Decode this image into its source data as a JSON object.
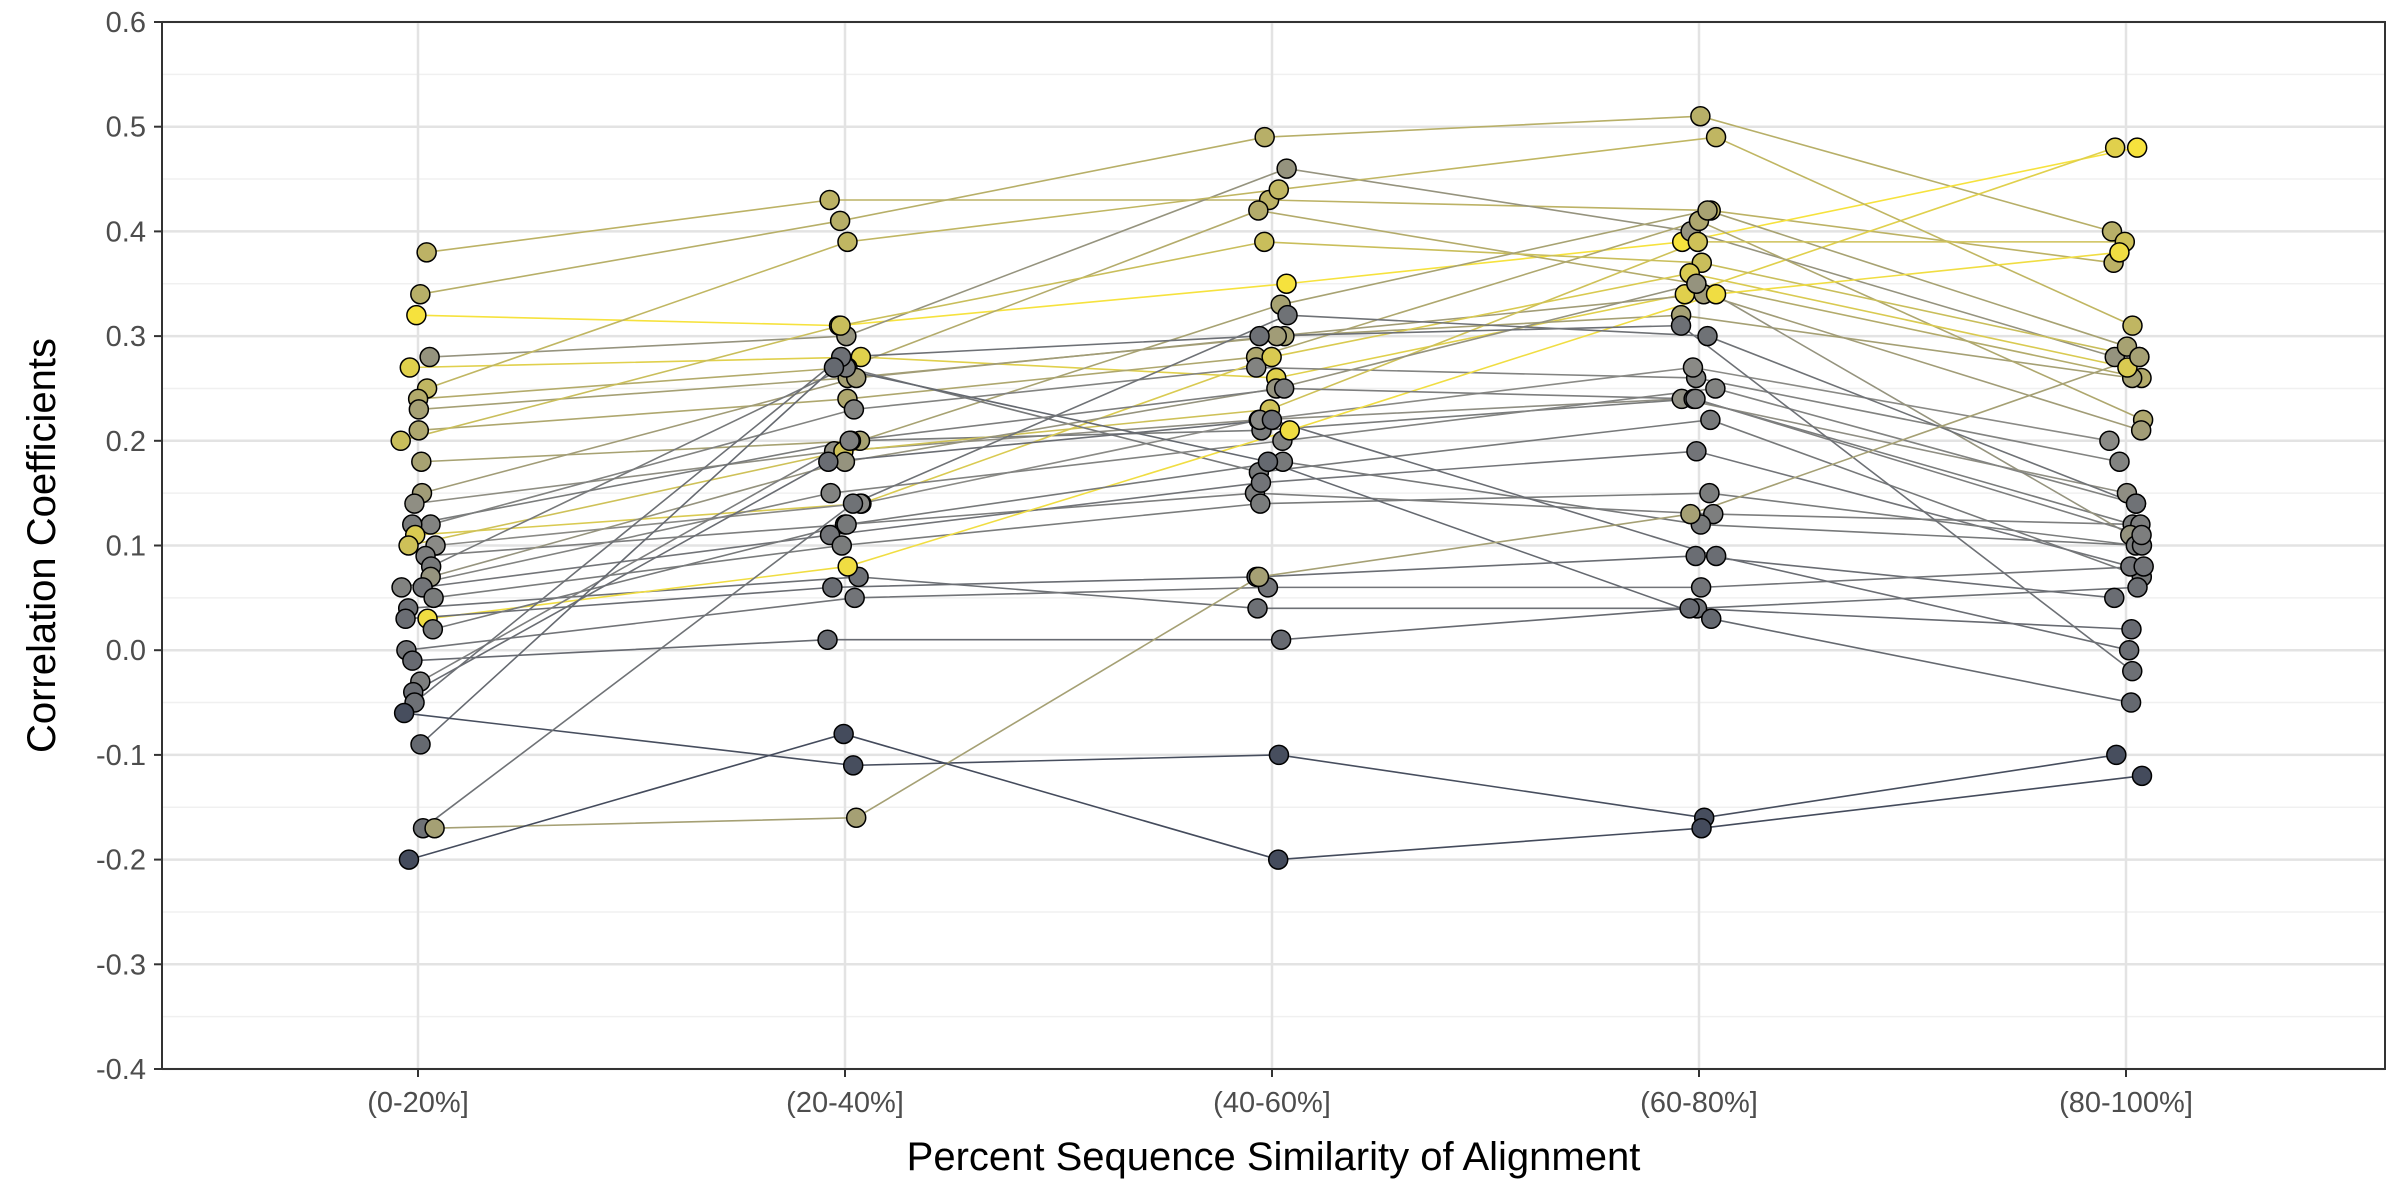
{
  "chart_data": {
    "type": "scatter",
    "subtype": "jittered points connected by lines (paired slope chart)",
    "title": "",
    "xlabel": "Percent Sequence Similarity of Alignment",
    "ylabel": "Correlation Coefficients",
    "categories": [
      "(0-20%]",
      "(20-40%]",
      "(40-60%]",
      "(60-80%]",
      "(80-100%]"
    ],
    "ylim": [
      -0.4,
      0.6
    ],
    "yticks": [
      "-0.4",
      "-0.3",
      "-0.2",
      "-0.1",
      "0.0",
      "0.1",
      "0.2",
      "0.3",
      "0.4",
      "0.5",
      "0.6"
    ],
    "ytick_values": [
      -0.4,
      -0.3,
      -0.2,
      -0.1,
      0.0,
      0.1,
      0.2,
      0.3,
      0.4,
      0.5,
      0.6
    ],
    "grid": true,
    "legend": "none",
    "color_scale": {
      "low": "#3a4256",
      "mid": "#8a8a86",
      "high": "#fbe63a",
      "description": "points and lines colored by a continuous value (dark slate to yellow)"
    },
    "point_style": {
      "stroke": "#000000"
    },
    "series": [
      {
        "values": [
          0.38,
          0.43,
          0.43,
          0.42,
          0.37
        ],
        "color_value": 0.72
      },
      {
        "values": [
          0.34,
          0.41,
          0.49,
          0.51,
          0.4
        ],
        "color_value": 0.7
      },
      {
        "values": [
          0.32,
          0.31,
          0.35,
          0.39,
          0.48
        ],
        "color_value": 0.98
      },
      {
        "values": [
          0.27,
          0.28,
          0.26,
          0.34,
          0.48
        ],
        "color_value": 0.88
      },
      {
        "values": [
          0.28,
          0.3,
          0.46,
          0.4,
          0.28
        ],
        "color_value": 0.55
      },
      {
        "values": [
          0.25,
          0.39,
          0.44,
          0.49,
          0.31
        ],
        "color_value": 0.74
      },
      {
        "values": [
          0.24,
          0.27,
          0.42,
          0.35,
          0.26
        ],
        "color_value": 0.68
      },
      {
        "values": [
          0.23,
          0.26,
          0.3,
          0.32,
          0.26
        ],
        "color_value": 0.62
      },
      {
        "values": [
          0.21,
          0.24,
          0.28,
          0.41,
          0.22
        ],
        "color_value": 0.66
      },
      {
        "values": [
          0.2,
          0.31,
          0.39,
          0.37,
          0.28
        ],
        "color_value": 0.78
      },
      {
        "values": [
          0.18,
          0.2,
          0.33,
          0.42,
          0.29
        ],
        "color_value": 0.63
      },
      {
        "values": [
          0.15,
          0.26,
          0.3,
          0.34,
          0.21
        ],
        "color_value": 0.6
      },
      {
        "values": [
          0.14,
          0.19,
          0.22,
          0.24,
          0.15
        ],
        "color_value": 0.52
      },
      {
        "values": [
          0.12,
          0.23,
          0.27,
          0.26,
          0.18
        ],
        "color_value": 0.45
      },
      {
        "values": [
          0.12,
          0.2,
          0.21,
          0.24,
          0.12
        ],
        "color_value": 0.4
      },
      {
        "values": [
          0.11,
          0.14,
          0.28,
          0.36,
          0.27
        ],
        "color_value": 0.85
      },
      {
        "values": [
          0.1,
          0.19,
          0.23,
          0.39,
          0.39
        ],
        "color_value": 0.8
      },
      {
        "values": [
          0.1,
          0.14,
          0.22,
          0.27,
          0.2
        ],
        "color_value": 0.5
      },
      {
        "values": [
          0.09,
          0.12,
          0.15,
          0.13,
          0.12
        ],
        "color_value": 0.42
      },
      {
        "values": [
          0.08,
          0.27,
          0.17,
          0.22,
          0.07
        ],
        "color_value": 0.38
      },
      {
        "values": [
          0.07,
          0.18,
          0.25,
          0.35,
          0.11
        ],
        "color_value": 0.55
      },
      {
        "values": [
          0.06,
          0.15,
          0.2,
          0.25,
          0.14
        ],
        "color_value": 0.45
      },
      {
        "values": [
          0.06,
          0.11,
          0.16,
          0.19,
          0.08
        ],
        "color_value": 0.35
      },
      {
        "values": [
          0.05,
          0.1,
          0.14,
          0.15,
          0.1
        ],
        "color_value": 0.4
      },
      {
        "values": [
          0.04,
          0.07,
          0.04,
          0.04,
          0.06
        ],
        "color_value": 0.32
      },
      {
        "values": [
          0.03,
          0.08,
          0.21,
          0.34,
          0.38
        ],
        "color_value": 0.95
      },
      {
        "values": [
          0.03,
          0.06,
          0.07,
          0.09,
          0.05
        ],
        "color_value": 0.3
      },
      {
        "values": [
          0.02,
          0.12,
          0.18,
          0.12,
          0.1
        ],
        "color_value": 0.38
      },
      {
        "values": [
          0.0,
          0.05,
          0.06,
          0.06,
          0.08
        ],
        "color_value": 0.35
      },
      {
        "values": [
          -0.01,
          0.01,
          0.01,
          0.04,
          0.02
        ],
        "color_value": 0.28
      },
      {
        "values": [
          -0.03,
          0.2,
          0.25,
          0.24,
          0.11
        ],
        "color_value": 0.42
      },
      {
        "values": [
          -0.04,
          0.18,
          0.22,
          0.09,
          0.0
        ],
        "color_value": 0.3
      },
      {
        "values": [
          -0.05,
          0.28,
          0.3,
          0.31,
          -0.02
        ],
        "color_value": 0.32
      },
      {
        "values": [
          -0.09,
          0.27,
          0.18,
          0.03,
          -0.05
        ],
        "color_value": 0.27
      },
      {
        "values": [
          -0.06,
          -0.11,
          -0.1,
          -0.16,
          -0.1
        ],
        "color_value": 0.08
      },
      {
        "values": [
          -0.17,
          0.14,
          0.32,
          0.3,
          0.14
        ],
        "color_value": 0.33
      },
      {
        "values": [
          -0.17,
          -0.16,
          0.07,
          0.13,
          0.28
        ],
        "color_value": 0.62
      },
      {
        "values": [
          -0.2,
          -0.08,
          -0.2,
          -0.17,
          -0.12
        ],
        "color_value": 0.06
      }
    ]
  }
}
